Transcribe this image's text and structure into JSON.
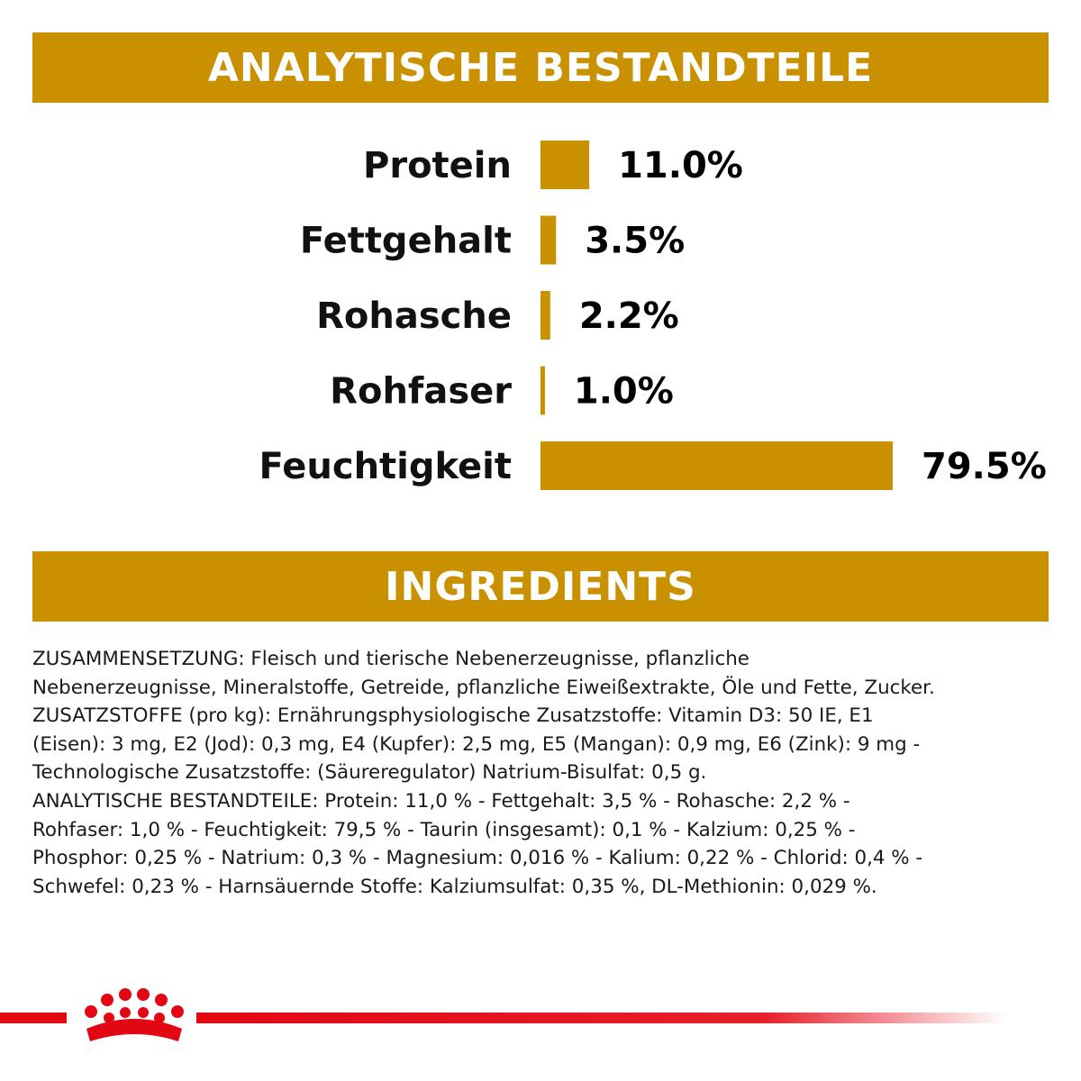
{
  "header": {
    "title": "ANALYTISCHE BESTANDTEILE"
  },
  "chart_data": {
    "type": "bar",
    "orientation": "horizontal",
    "categories": [
      "Protein",
      "Fettgehalt",
      "Rohasche",
      "Rohfaser",
      "Feuchtigkeit"
    ],
    "values": [
      11.0,
      3.5,
      2.2,
      1.0,
      79.5
    ],
    "value_labels": [
      "11.0%",
      "3.5%",
      "2.2%",
      "1.0%",
      "79.5%"
    ],
    "unit": "%",
    "xlim": [
      0,
      79.5
    ],
    "grid": false,
    "legend": "none",
    "title": "",
    "xlabel": "",
    "ylabel": "",
    "bar_color": "#c99000"
  },
  "ingredients": {
    "title": "INGREDIENTS",
    "lines": [
      "ZUSAMMENSETZUNG: Fleisch und tierische Nebenerzeugnisse, pflanzliche",
      "Nebenerzeugnisse, Mineralstoffe, Getreide, pflanzliche Eiweißextrakte, Öle und Fette, Zucker.",
      "ZUSATZSTOFFE (pro kg): Ernährungsphysiologische Zusatzstoffe: Vitamin D3: 50 IE, E1",
      "(Eisen): 3 mg, E2 (Jod): 0,3 mg, E4 (Kupfer): 2,5 mg, E5 (Mangan): 0,9 mg, E6 (Zink): 9 mg -",
      "Technologische Zusatzstoffe: (Säureregulator) Natrium-Bisulfat: 0,5 g.",
      "ANALYTISCHE BESTANDTEILE: Protein: 11,0 % - Fettgehalt: 3,5 % - Rohasche: 2,2 % -",
      "Rohfaser: 1,0 % - Feuchtigkeit: 79,5 % - Taurin (insgesamt): 0,1 % - Kalzium: 0,25 % -",
      "Phosphor: 0,25 % - Natrium: 0,3 % - Magnesium: 0,016 % - Kalium: 0,22 % - Chlorid: 0,4 % -",
      "Schwefel: 0,23 % - Harnsäuernde Stoffe: Kalziumsulfat: 0,35 %, DL-Methionin: 0,029 %."
    ]
  },
  "footer": {
    "logo_icon": "crown-logo-icon",
    "brand_color": "#e30613"
  }
}
